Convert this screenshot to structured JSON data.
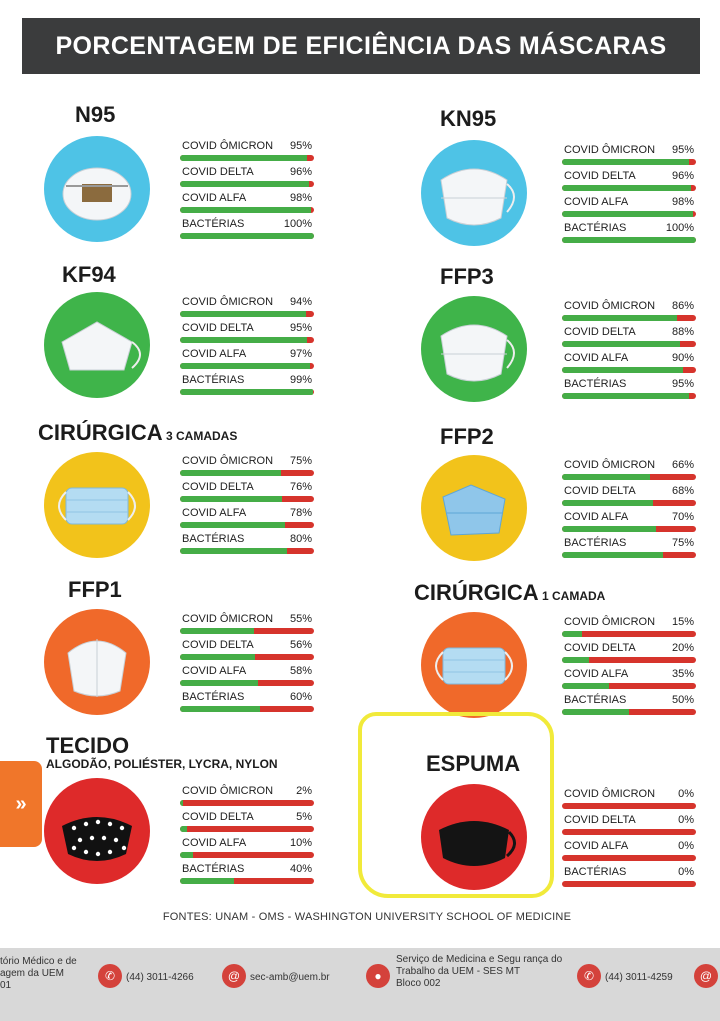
{
  "title": "PORCENTAGEM DE EFICIÊNCIA DAS MÁSCARAS",
  "sources": "FONTES: UNAM - OMS - WASHINGTON UNIVERSITY SCHOOL OF MEDICINE",
  "side_tab_icon": "»",
  "colors": {
    "good": "#45ad47",
    "bad": "#d6342c",
    "title_bg": "#3b3c3d",
    "highlight": "#f1ea3a"
  },
  "chart_data": {
    "type": "bar",
    "categories": [
      "COVID ÔMICRON",
      "COVID DELTA",
      "COVID ALFA",
      "BACTÉRIAS"
    ],
    "masks": [
      {
        "name": "N95",
        "suffix": "",
        "subtitle": "",
        "circle": "#4ec3e6",
        "icon": "n95-mask-icon",
        "values": [
          95,
          96,
          98,
          100
        ]
      },
      {
        "name": "KN95",
        "suffix": "",
        "subtitle": "",
        "circle": "#4ec3e6",
        "icon": "kn95-mask-icon",
        "values": [
          95,
          96,
          98,
          100
        ]
      },
      {
        "name": "KF94",
        "suffix": "",
        "subtitle": "",
        "circle": "#3fb44a",
        "icon": "kf94-mask-icon",
        "values": [
          94,
          95,
          97,
          99
        ]
      },
      {
        "name": "FFP3",
        "suffix": "",
        "subtitle": "",
        "circle": "#3fb44a",
        "icon": "ffp3-mask-icon",
        "values": [
          86,
          88,
          90,
          95
        ]
      },
      {
        "name": "CIRÚRGICA",
        "suffix": "3 CAMADAS",
        "subtitle": "",
        "circle": "#f2c31b",
        "icon": "surgical-mask-icon",
        "values": [
          75,
          76,
          78,
          80
        ]
      },
      {
        "name": "FFP2",
        "suffix": "",
        "subtitle": "",
        "circle": "#f2c31b",
        "icon": "ffp2-mask-icon",
        "values": [
          66,
          68,
          70,
          75
        ]
      },
      {
        "name": "FFP1",
        "suffix": "",
        "subtitle": "",
        "circle": "#f0692a",
        "icon": "ffp1-mask-icon",
        "values": [
          55,
          56,
          58,
          60
        ]
      },
      {
        "name": "CIRÚRGICA",
        "suffix": "1 CAMADA",
        "subtitle": "",
        "circle": "#f0692a",
        "icon": "surgical-mask-icon",
        "values": [
          15,
          20,
          35,
          50
        ]
      },
      {
        "name": "TECIDO",
        "suffix": "",
        "subtitle": "ALGODÃO, POLIÉSTER, LYCRA, NYLON",
        "circle": "#de2a2a",
        "icon": "cloth-mask-icon",
        "values": [
          2,
          5,
          10,
          40
        ]
      },
      {
        "name": "ESPUMA",
        "suffix": "",
        "subtitle": "",
        "circle": "#de2a2a",
        "icon": "foam-mask-icon",
        "values": [
          0,
          0,
          0,
          0
        ]
      }
    ]
  },
  "footer": {
    "left_text": "tório Médico e de\nagem da UEM\n01",
    "phone_1": "(44) 3011-4266",
    "email_1": "sec-amb@uem.br",
    "right_text": "Serviço de Medicina e Segu  rança do\nTrabalho da UEM - SES MT\nBloco 002",
    "phone_2": "(44) 3011-4259",
    "phone_icon": "phone-icon",
    "email_icon": "email-icon",
    "location_icon": "location-pin-icon"
  }
}
